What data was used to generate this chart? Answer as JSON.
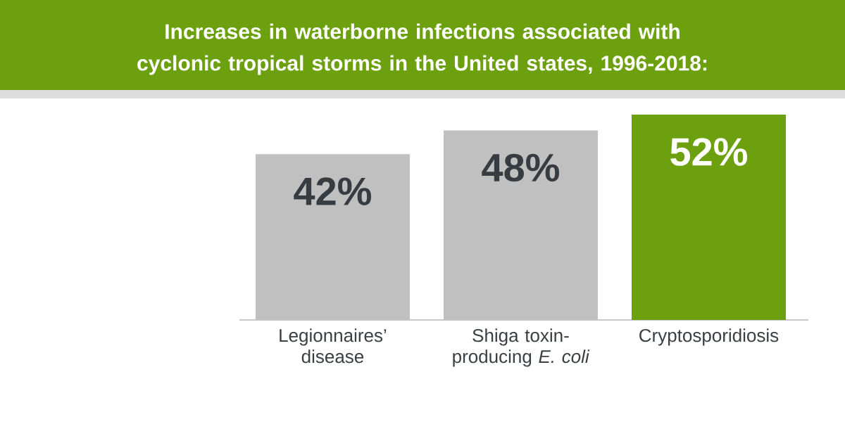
{
  "chart_data": {
    "type": "bar",
    "title": "Increases in waterborne infections associated with cyclonic tropical storms in the United states, 1996-2018:",
    "categories": [
      "Legionnaires’ disease",
      "Shiga toxin-producing *E. coli*",
      "Cryptosporidiosis"
    ],
    "values": [
      42,
      48,
      52
    ],
    "colors": [
      "#c0c0c0",
      "#c0c0c0",
      "#6ca00f"
    ],
    "value_labels": [
      "42%",
      "48%",
      "52%"
    ]
  }
}
